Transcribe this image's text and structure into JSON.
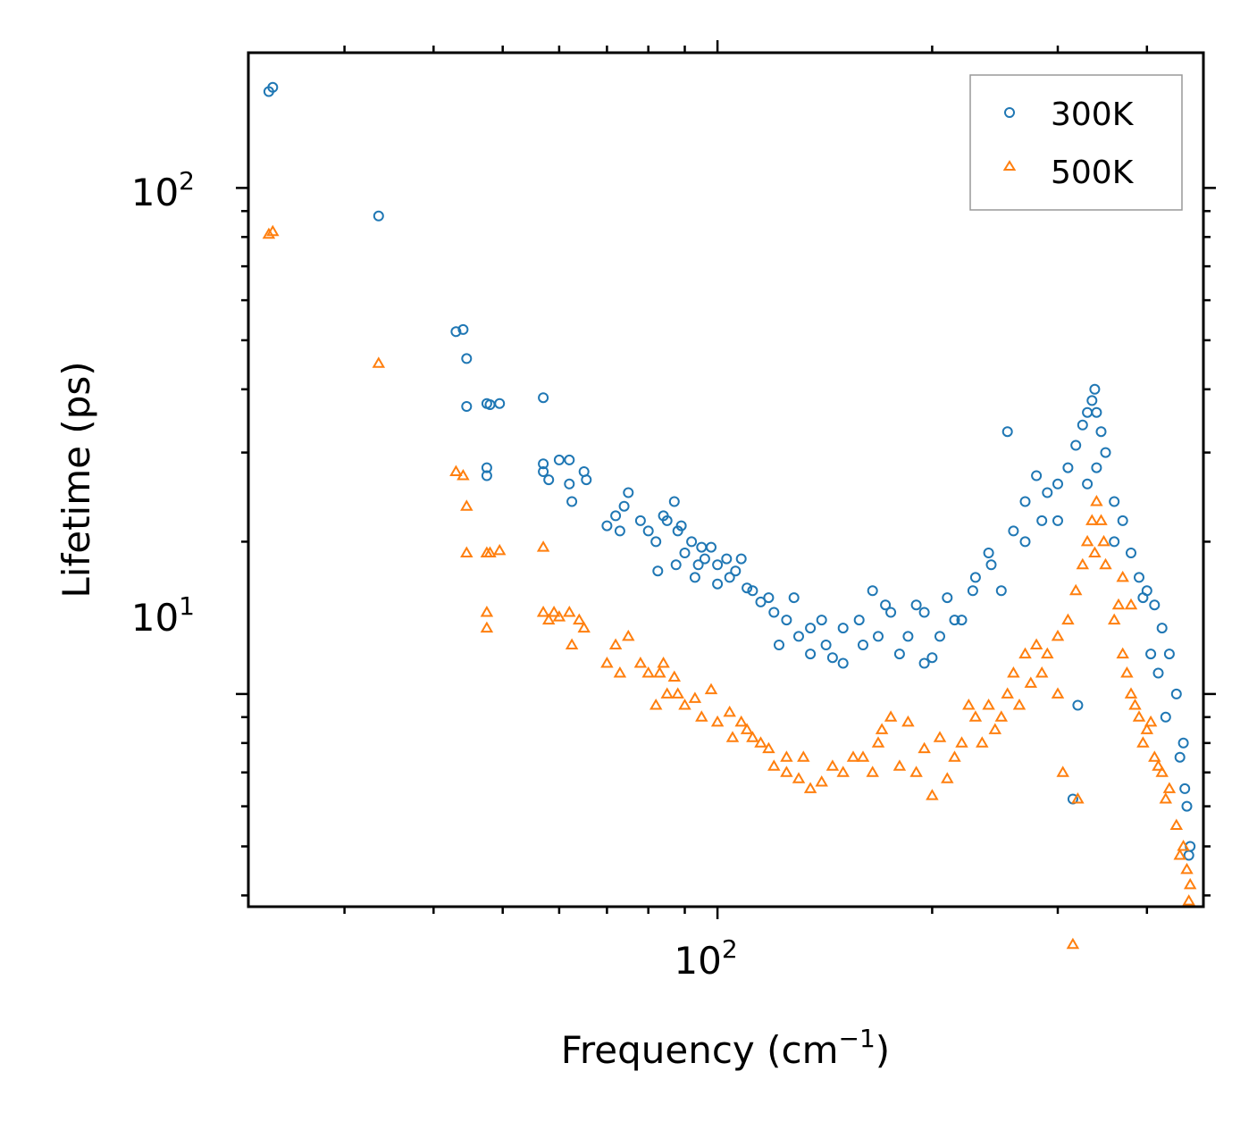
{
  "chart_data": {
    "type": "scatter",
    "title": "",
    "xlabel": "Frequency (cm",
    "xlabel_sup": "−1",
    "xlabel_end": ")",
    "ylabel": "Lifetime (ps)",
    "xscale": "log",
    "yscale": "log",
    "xlim": [
      22,
      480
    ],
    "ylim": [
      3.8,
      185
    ],
    "x_major_ticks": [
      {
        "value": 100,
        "base": "10",
        "exp": "2"
      }
    ],
    "y_major_ticks": [
      {
        "value": 10,
        "base": "10",
        "exp": "1"
      },
      {
        "value": 100,
        "base": "10",
        "exp": "2"
      }
    ],
    "legend_position": "top-right",
    "colors": {
      "300K": "#1f77b4",
      "500K": "#ff7f0e"
    },
    "series": [
      {
        "name": "300K",
        "marker": "circle",
        "color": "#1f77b4",
        "points": [
          [
            23.5,
            155
          ],
          [
            23.8,
            158
          ],
          [
            33.5,
            88
          ],
          [
            43,
            52
          ],
          [
            44,
            52.5
          ],
          [
            44.5,
            46
          ],
          [
            44.5,
            37
          ],
          [
            47.5,
            37.5
          ],
          [
            48,
            37.3
          ],
          [
            49.5,
            37.5
          ],
          [
            47.5,
            28
          ],
          [
            47.5,
            27
          ],
          [
            57,
            38.5
          ],
          [
            57,
            28.5
          ],
          [
            58,
            26.5
          ],
          [
            57,
            27.5
          ],
          [
            60,
            29
          ],
          [
            62,
            29
          ],
          [
            62,
            26
          ],
          [
            62.5,
            24
          ],
          [
            65,
            27.5
          ],
          [
            65.5,
            26.5
          ],
          [
            70,
            21.5
          ],
          [
            72,
            22.5
          ],
          [
            73,
            21
          ],
          [
            74,
            23.5
          ],
          [
            75,
            25
          ],
          [
            78,
            22
          ],
          [
            82,
            20
          ],
          [
            82.5,
            17.5
          ],
          [
            85,
            22
          ],
          [
            87,
            24
          ],
          [
            87.5,
            18
          ],
          [
            89,
            21.5
          ],
          [
            90,
            19
          ],
          [
            93,
            17
          ],
          [
            95,
            19.5
          ],
          [
            96,
            18.5
          ],
          [
            100,
            18
          ],
          [
            100,
            16.5
          ],
          [
            104,
            17
          ],
          [
            108,
            18.5
          ],
          [
            112,
            16
          ],
          [
            118,
            15.5
          ],
          [
            122,
            12.5
          ],
          [
            125,
            14
          ],
          [
            130,
            13
          ],
          [
            135,
            12
          ],
          [
            140,
            14
          ],
          [
            145,
            11.8
          ],
          [
            150,
            13.5
          ],
          [
            160,
            12.5
          ],
          [
            165,
            16
          ],
          [
            168,
            13
          ],
          [
            175,
            14.5
          ],
          [
            180,
            12
          ],
          [
            190,
            15
          ],
          [
            195,
            11.5
          ],
          [
            200,
            11.8
          ],
          [
            210,
            15.5
          ],
          [
            220,
            14
          ],
          [
            230,
            17
          ],
          [
            240,
            19
          ],
          [
            250,
            16
          ],
          [
            260,
            21
          ],
          [
            270,
            24
          ],
          [
            280,
            27
          ],
          [
            290,
            25
          ],
          [
            300,
            26
          ],
          [
            310,
            28
          ],
          [
            318,
            31
          ],
          [
            325,
            34
          ],
          [
            330,
            36
          ],
          [
            335,
            38
          ],
          [
            338,
            40
          ],
          [
            340,
            36
          ],
          [
            345,
            33
          ],
          [
            350,
            30
          ],
          [
            360,
            24
          ],
          [
            370,
            22
          ],
          [
            380,
            19
          ],
          [
            390,
            17
          ],
          [
            400,
            16
          ],
          [
            410,
            15
          ],
          [
            420,
            13.5
          ],
          [
            430,
            12
          ],
          [
            440,
            10
          ],
          [
            450,
            8
          ],
          [
            455,
            6
          ],
          [
            460,
            5
          ],
          [
            315,
            6.2
          ],
          [
            320,
            9.5
          ],
          [
            255,
            33
          ],
          [
            300,
            22
          ],
          [
            360,
            20
          ],
          [
            395,
            15.5
          ],
          [
            405,
            12
          ],
          [
            415,
            11
          ],
          [
            425,
            9
          ],
          [
            445,
            7.5
          ],
          [
            452,
            6.5
          ],
          [
            458,
            4.8
          ],
          [
            340,
            28
          ],
          [
            330,
            26
          ],
          [
            270,
            20
          ],
          [
            285,
            22
          ],
          [
            242,
            18
          ],
          [
            228,
            16
          ],
          [
            215,
            14
          ],
          [
            205,
            13
          ],
          [
            195,
            14.5
          ],
          [
            185,
            13
          ],
          [
            172,
            15
          ],
          [
            158,
            14
          ],
          [
            150,
            11.5
          ],
          [
            142,
            12.5
          ],
          [
            135,
            13.5
          ],
          [
            128,
            15.5
          ],
          [
            120,
            14.5
          ],
          [
            115,
            15.2
          ],
          [
            110,
            16.2
          ],
          [
            106,
            17.5
          ],
          [
            103,
            18.5
          ],
          [
            98,
            19.5
          ],
          [
            94,
            18
          ],
          [
            92,
            20
          ],
          [
            88,
            21
          ],
          [
            84,
            22.5
          ],
          [
            80,
            21
          ]
        ]
      },
      {
        "name": "500K",
        "marker": "triangle",
        "color": "#ff7f0e",
        "points": [
          [
            23.5,
            81
          ],
          [
            23.8,
            82
          ],
          [
            33.5,
            45
          ],
          [
            43,
            27.5
          ],
          [
            44,
            27
          ],
          [
            44.5,
            23.5
          ],
          [
            44.5,
            19
          ],
          [
            47.5,
            19
          ],
          [
            48,
            19
          ],
          [
            49.5,
            19.2
          ],
          [
            47.5,
            14.5
          ],
          [
            47.5,
            13.5
          ],
          [
            57,
            19.5
          ],
          [
            57,
            14.5
          ],
          [
            58,
            14
          ],
          [
            59,
            14.5
          ],
          [
            60,
            14.2
          ],
          [
            62,
            14.5
          ],
          [
            62.5,
            12.5
          ],
          [
            64,
            14
          ],
          [
            65,
            13.5
          ],
          [
            70,
            11.5
          ],
          [
            72,
            12.5
          ],
          [
            73,
            11
          ],
          [
            75,
            13
          ],
          [
            78,
            11.5
          ],
          [
            80,
            11
          ],
          [
            82,
            9.5
          ],
          [
            83,
            11
          ],
          [
            85,
            10
          ],
          [
            88,
            10
          ],
          [
            90,
            9.5
          ],
          [
            95,
            9
          ],
          [
            100,
            8.8
          ],
          [
            105,
            8.2
          ],
          [
            110,
            8.5
          ],
          [
            115,
            8
          ],
          [
            120,
            7.2
          ],
          [
            125,
            7.5
          ],
          [
            130,
            6.8
          ],
          [
            135,
            6.5
          ],
          [
            140,
            6.7
          ],
          [
            150,
            7
          ],
          [
            160,
            7.5
          ],
          [
            165,
            7
          ],
          [
            170,
            8.5
          ],
          [
            180,
            7.2
          ],
          [
            190,
            7
          ],
          [
            200,
            6.3
          ],
          [
            210,
            6.8
          ],
          [
            220,
            8
          ],
          [
            230,
            9
          ],
          [
            240,
            9.5
          ],
          [
            250,
            9
          ],
          [
            260,
            11
          ],
          [
            270,
            12
          ],
          [
            280,
            12.5
          ],
          [
            290,
            12
          ],
          [
            300,
            13
          ],
          [
            310,
            14
          ],
          [
            318,
            16
          ],
          [
            325,
            18
          ],
          [
            330,
            20
          ],
          [
            335,
            22
          ],
          [
            340,
            24
          ],
          [
            345,
            22
          ],
          [
            350,
            18
          ],
          [
            360,
            14
          ],
          [
            370,
            12
          ],
          [
            380,
            10
          ],
          [
            390,
            9
          ],
          [
            400,
            8.5
          ],
          [
            410,
            7.5
          ],
          [
            420,
            7
          ],
          [
            430,
            6.5
          ],
          [
            440,
            5.5
          ],
          [
            450,
            5
          ],
          [
            455,
            4.5
          ],
          [
            460,
            4.2
          ],
          [
            315,
            3.2
          ],
          [
            320,
            6.2
          ],
          [
            305,
            7
          ],
          [
            300,
            10
          ],
          [
            285,
            11
          ],
          [
            275,
            10.5
          ],
          [
            265,
            9.5
          ],
          [
            255,
            10
          ],
          [
            245,
            8.5
          ],
          [
            235,
            8
          ],
          [
            225,
            9.5
          ],
          [
            215,
            7.5
          ],
          [
            205,
            8.2
          ],
          [
            195,
            7.8
          ],
          [
            185,
            8.8
          ],
          [
            175,
            9
          ],
          [
            168,
            8
          ],
          [
            155,
            7.5
          ],
          [
            145,
            7.2
          ],
          [
            132,
            7.5
          ],
          [
            125,
            7
          ],
          [
            118,
            7.8
          ],
          [
            112,
            8.2
          ],
          [
            108,
            8.8
          ],
          [
            104,
            9.2
          ],
          [
            98,
            10.2
          ],
          [
            93,
            9.8
          ],
          [
            87,
            10.8
          ],
          [
            84,
            11.5
          ],
          [
            348,
            20
          ],
          [
            338,
            19
          ],
          [
            365,
            15
          ],
          [
            375,
            11
          ],
          [
            385,
            9.5
          ],
          [
            395,
            8
          ],
          [
            405,
            8.8
          ],
          [
            415,
            7.2
          ],
          [
            425,
            6.2
          ],
          [
            445,
            4.8
          ],
          [
            458,
            3.9
          ],
          [
            380,
            15
          ],
          [
            370,
            17
          ]
        ]
      }
    ]
  }
}
